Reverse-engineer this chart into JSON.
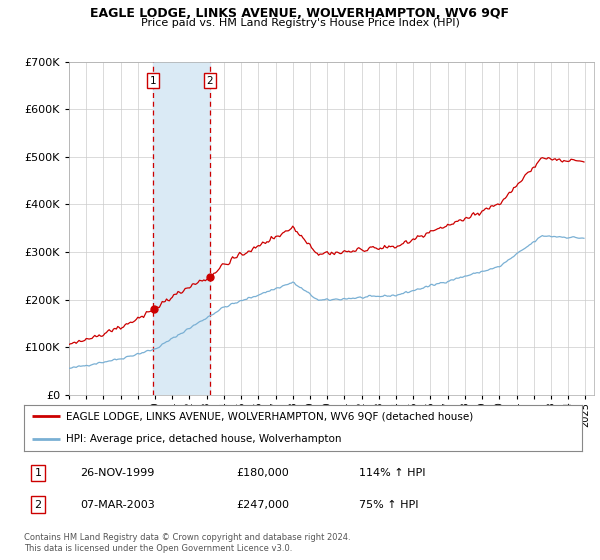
{
  "title": "EAGLE LODGE, LINKS AVENUE, WOLVERHAMPTON, WV6 9QF",
  "subtitle": "Price paid vs. HM Land Registry's House Price Index (HPI)",
  "legend_line1": "EAGLE LODGE, LINKS AVENUE, WOLVERHAMPTON, WV6 9QF (detached house)",
  "legend_line2": "HPI: Average price, detached house, Wolverhampton",
  "transaction1_date": "26-NOV-1999",
  "transaction1_price": "£180,000",
  "transaction1_hpi": "114% ↑ HPI",
  "transaction1_date_num": 1999.9,
  "transaction1_price_val": 180000,
  "transaction2_date": "07-MAR-2003",
  "transaction2_price": "£247,000",
  "transaction2_hpi": "75% ↑ HPI",
  "transaction2_date_num": 2003.18,
  "transaction2_price_val": 247000,
  "red_line_color": "#cc0000",
  "blue_line_color": "#7ab0d4",
  "shade_color": "#daeaf5",
  "dashed_line_color": "#cc0000",
  "grid_color": "#cccccc",
  "background_color": "#ffffff",
  "ylim": [
    0,
    700000
  ],
  "xlim_start": 1995,
  "xlim_end": 2025.5,
  "footer": "Contains HM Land Registry data © Crown copyright and database right 2024.\nThis data is licensed under the Open Government Licence v3.0."
}
